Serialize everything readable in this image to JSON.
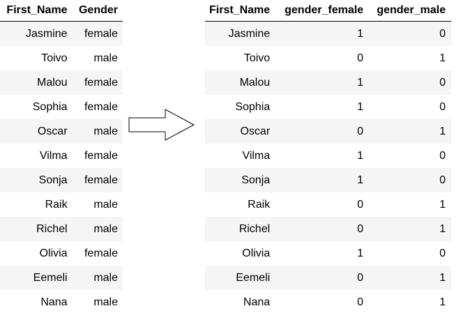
{
  "left_table": {
    "headers": [
      "First_Name",
      "Gender"
    ],
    "rows": [
      [
        "Jasmine",
        "female"
      ],
      [
        "Toivo",
        "male"
      ],
      [
        "Malou",
        "female"
      ],
      [
        "Sophia",
        "female"
      ],
      [
        "Oscar",
        "male"
      ],
      [
        "Vilma",
        "female"
      ],
      [
        "Sonja",
        "female"
      ],
      [
        "Raik",
        "male"
      ],
      [
        "Richel",
        "male"
      ],
      [
        "Olivia",
        "female"
      ],
      [
        "Eemeli",
        "male"
      ],
      [
        "Nana",
        "male"
      ]
    ]
  },
  "right_table": {
    "headers": [
      "First_Name",
      "gender_female",
      "gender_male"
    ],
    "rows": [
      [
        "Jasmine",
        "1",
        "0"
      ],
      [
        "Toivo",
        "0",
        "1"
      ],
      [
        "Malou",
        "1",
        "0"
      ],
      [
        "Sophia",
        "1",
        "0"
      ],
      [
        "Oscar",
        "0",
        "1"
      ],
      [
        "Vilma",
        "1",
        "0"
      ],
      [
        "Sonja",
        "1",
        "0"
      ],
      [
        "Raik",
        "0",
        "1"
      ],
      [
        "Richel",
        "0",
        "1"
      ],
      [
        "Olivia",
        "1",
        "0"
      ],
      [
        "Eemeli",
        "0",
        "1"
      ],
      [
        "Nana",
        "0",
        "1"
      ]
    ]
  },
  "arrow": {
    "icon": "right-arrow-icon",
    "fill": "#ffffff",
    "stroke": "#000000"
  },
  "colors": {
    "striped_row": "#f5f5f5",
    "plain_row": "#ffffff",
    "text": "#000000"
  }
}
